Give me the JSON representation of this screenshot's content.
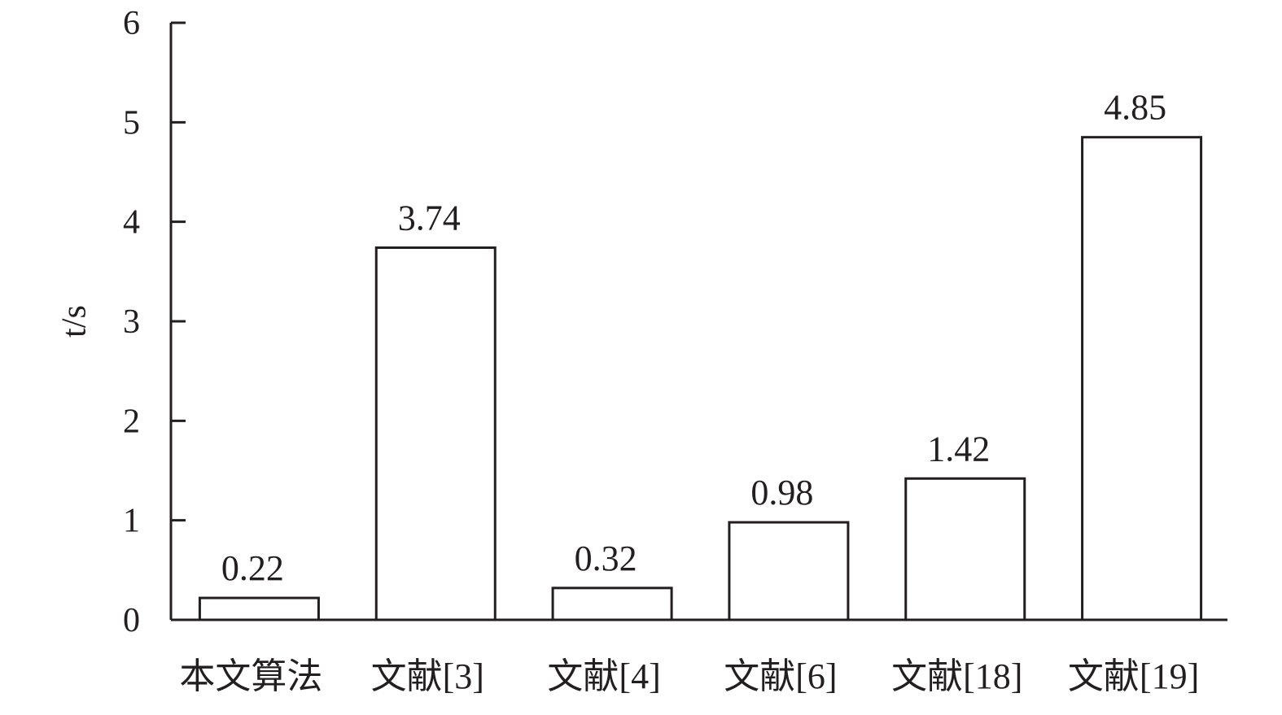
{
  "chart_data": {
    "type": "bar",
    "y_label": "t/s",
    "categories": [
      "本文算法",
      "文献[3]",
      "文献[4]",
      "文献[6]",
      "文献[18]",
      "文献[19]"
    ],
    "values": [
      0.22,
      3.74,
      0.32,
      0.98,
      1.42,
      4.85
    ],
    "value_labels": [
      "0.22",
      "3.74",
      "0.32",
      "0.98",
      "1.42",
      "4.85"
    ],
    "color": "#ffffff",
    "edge_color": "#231f20",
    "ylim": [
      0,
      6
    ],
    "yticks": [
      0,
      1,
      2,
      3,
      4,
      5,
      6
    ],
    "grid": false
  }
}
